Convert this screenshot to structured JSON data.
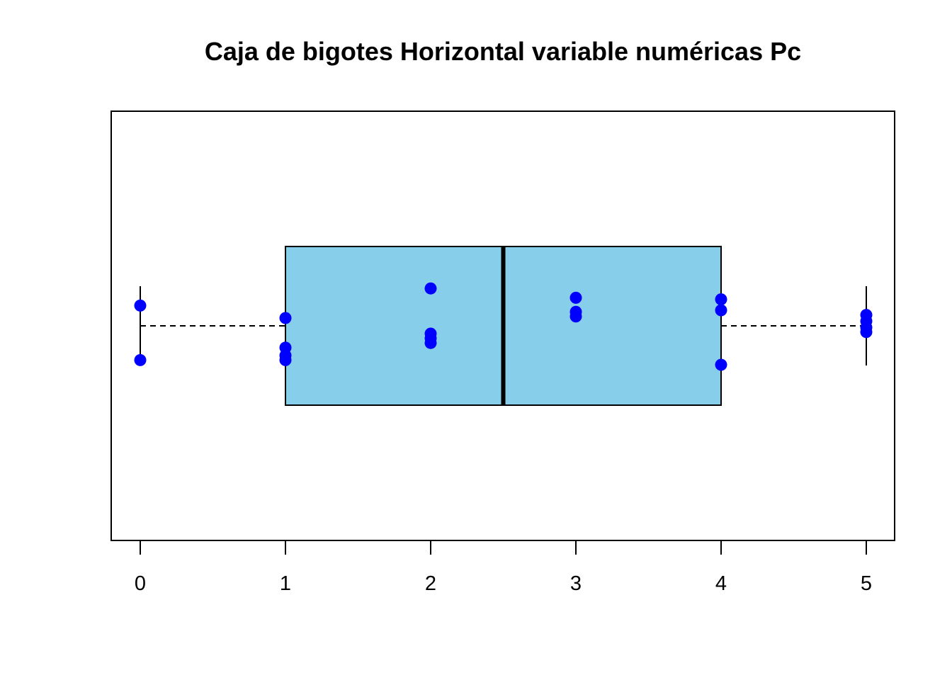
{
  "chart_data": {
    "type": "boxplot",
    "orientation": "horizontal",
    "title": "Caja de bigotes Horizontal variable numéricas Pc",
    "xlabel": "",
    "ylabel": "",
    "xlim": [
      -0.2,
      5.2
    ],
    "ticks": [
      0,
      1,
      2,
      3,
      4,
      5
    ],
    "tick_labels": [
      "0",
      "1",
      "2",
      "3",
      "4",
      "5"
    ],
    "box": {
      "min": 0,
      "q1": 1,
      "median": 2.5,
      "q3": 4,
      "max": 5
    },
    "points": [
      {
        "x": 0,
        "jitter": 0.13
      },
      {
        "x": 0,
        "jitter": -0.22
      },
      {
        "x": 1,
        "jitter": 0.05
      },
      {
        "x": 1,
        "jitter": -0.14
      },
      {
        "x": 1,
        "jitter": -0.19
      },
      {
        "x": 1,
        "jitter": -0.22
      },
      {
        "x": 2,
        "jitter": 0.24
      },
      {
        "x": 2,
        "jitter": -0.05
      },
      {
        "x": 2,
        "jitter": -0.08
      },
      {
        "x": 2,
        "jitter": -0.11
      },
      {
        "x": 3,
        "jitter": 0.18
      },
      {
        "x": 3,
        "jitter": 0.09
      },
      {
        "x": 3,
        "jitter": 0.06
      },
      {
        "x": 4,
        "jitter": 0.17
      },
      {
        "x": 4,
        "jitter": 0.1
      },
      {
        "x": 4,
        "jitter": -0.25
      },
      {
        "x": 5,
        "jitter": 0.07
      },
      {
        "x": 5,
        "jitter": 0.03
      },
      {
        "x": 5,
        "jitter": -0.01
      },
      {
        "x": 5,
        "jitter": -0.04
      }
    ],
    "colors": {
      "box_fill": "#87ceeb",
      "points": "#0000ff",
      "lines": "#000000"
    },
    "grid": false,
    "legend": "none"
  }
}
